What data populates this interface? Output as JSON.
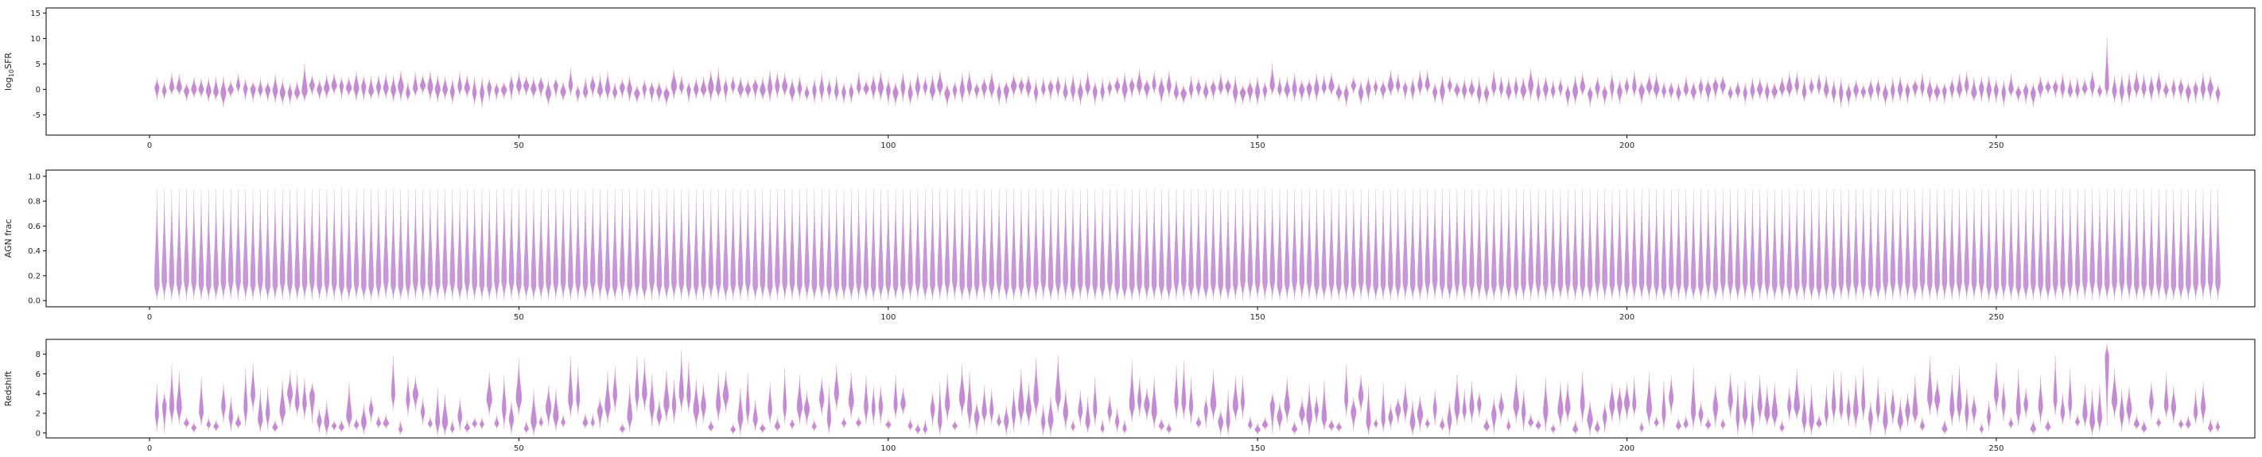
{
  "chart_data": [
    {
      "type": "violin",
      "ylabel": "log$_{10}$SFR",
      "ylabel_text": "log",
      "ylabel_sub": "10",
      "ylabel_suffix": "SFR",
      "xlim": [
        -14,
        285
      ],
      "ylim": [
        -9,
        16
      ],
      "x_ticks": [
        0,
        50,
        100,
        150,
        200,
        250
      ],
      "y_ticks": [
        -5,
        0,
        5,
        10,
        15
      ],
      "n_sources": 280,
      "series": [
        {
          "name": "",
          "color": "#ff8a8a",
          "median": 0.0,
          "spread": 1.2,
          "max": 10.0
        },
        {
          "name": "",
          "color": "#9b59d0",
          "median": 0.0,
          "spread": 1.0,
          "max": 3.0
        }
      ],
      "notable_peaks": [
        {
          "x": 21,
          "y": 5
        },
        {
          "x": 77,
          "y": 4
        },
        {
          "x": 152,
          "y": 5
        },
        {
          "x": 265,
          "y": 10
        }
      ]
    },
    {
      "type": "violin",
      "ylabel": "AGN frac",
      "xlim": [
        -14,
        285
      ],
      "ylim": [
        -0.05,
        1.05
      ],
      "x_ticks": [
        0,
        50,
        100,
        150,
        200,
        250
      ],
      "y_ticks": [
        0.0,
        0.2,
        0.4,
        0.6,
        0.8,
        1.0
      ],
      "y_tick_labels": [
        "0.0",
        "0.2",
        "0.4",
        "0.6",
        "0.8",
        "1.0"
      ],
      "n_sources": 280,
      "series": [
        {
          "name": "",
          "color": "#ff8a8a",
          "range": [
            0.0,
            0.9
          ]
        },
        {
          "name": "",
          "color": "#9b59d0",
          "range": [
            0.0,
            0.9
          ]
        }
      ]
    },
    {
      "type": "violin",
      "ylabel": "Redshift",
      "xlim": [
        -14,
        285
      ],
      "ylim": [
        -0.5,
        9.5
      ],
      "x_ticks": [
        0,
        50,
        100,
        150,
        200,
        250
      ],
      "y_ticks": [
        0,
        2,
        4,
        6,
        8
      ],
      "n_sources": 280,
      "series": [
        {
          "name": "",
          "color": "#ff8a8a",
          "range": [
            0.0,
            9.0
          ]
        },
        {
          "name": "",
          "color": "#9b59d0",
          "range": [
            0.0,
            9.0
          ]
        }
      ],
      "notable_peaks": [
        {
          "x": 2,
          "y": 4
        },
        {
          "x": 22,
          "y": 5
        },
        {
          "x": 152,
          "y": 4
        },
        {
          "x": 265,
          "y": 9
        }
      ]
    }
  ]
}
